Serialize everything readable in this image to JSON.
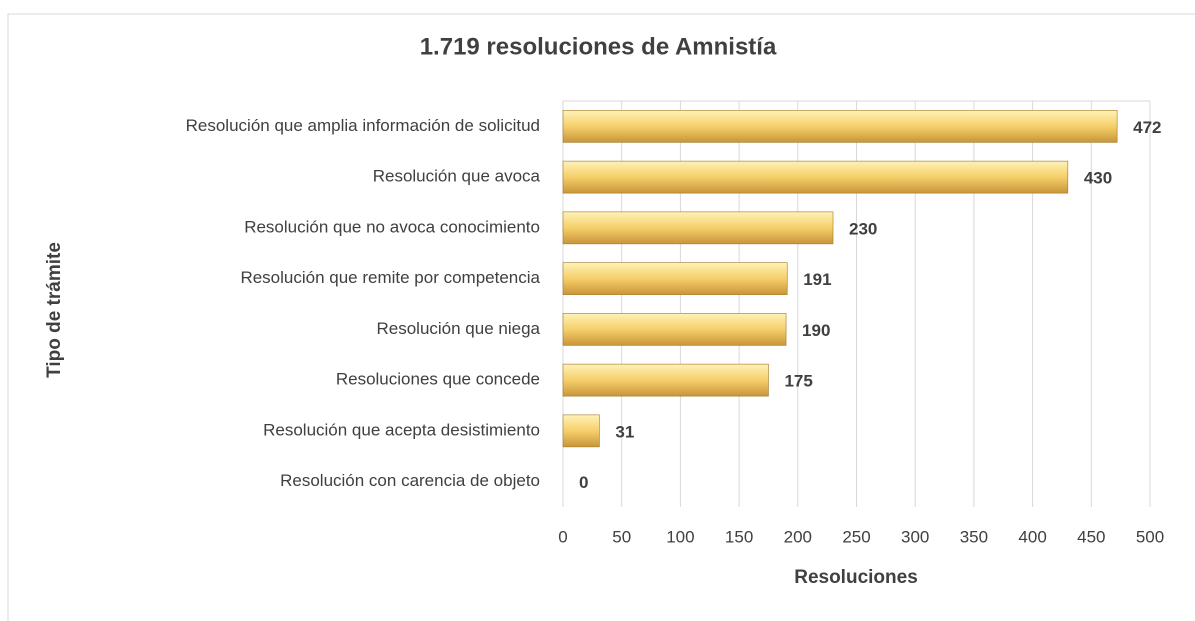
{
  "chart_data": {
    "type": "bar",
    "orientation": "horizontal",
    "title": "1.719 resoluciones de Amnistía",
    "xlabel": "Resoluciones",
    "ylabel": "Tipo de trámite",
    "categories": [
      "Resolución que amplia información de solicitud",
      "Resolución que avoca",
      "Resolución que no avoca conocimiento",
      "Resolución que remite por competencia",
      "Resolución que niega",
      "Resoluciones que concede",
      "Resolución que acepta desistimiento",
      "Resolución con carencia de objeto"
    ],
    "values": [
      472,
      430,
      230,
      191,
      190,
      175,
      31,
      0
    ],
    "color": "#f2cc66",
    "xlim": [
      0,
      500
    ],
    "xticks": [
      0,
      50,
      100,
      150,
      200,
      250,
      300,
      350,
      400,
      450,
      500
    ],
    "grid": true
  }
}
